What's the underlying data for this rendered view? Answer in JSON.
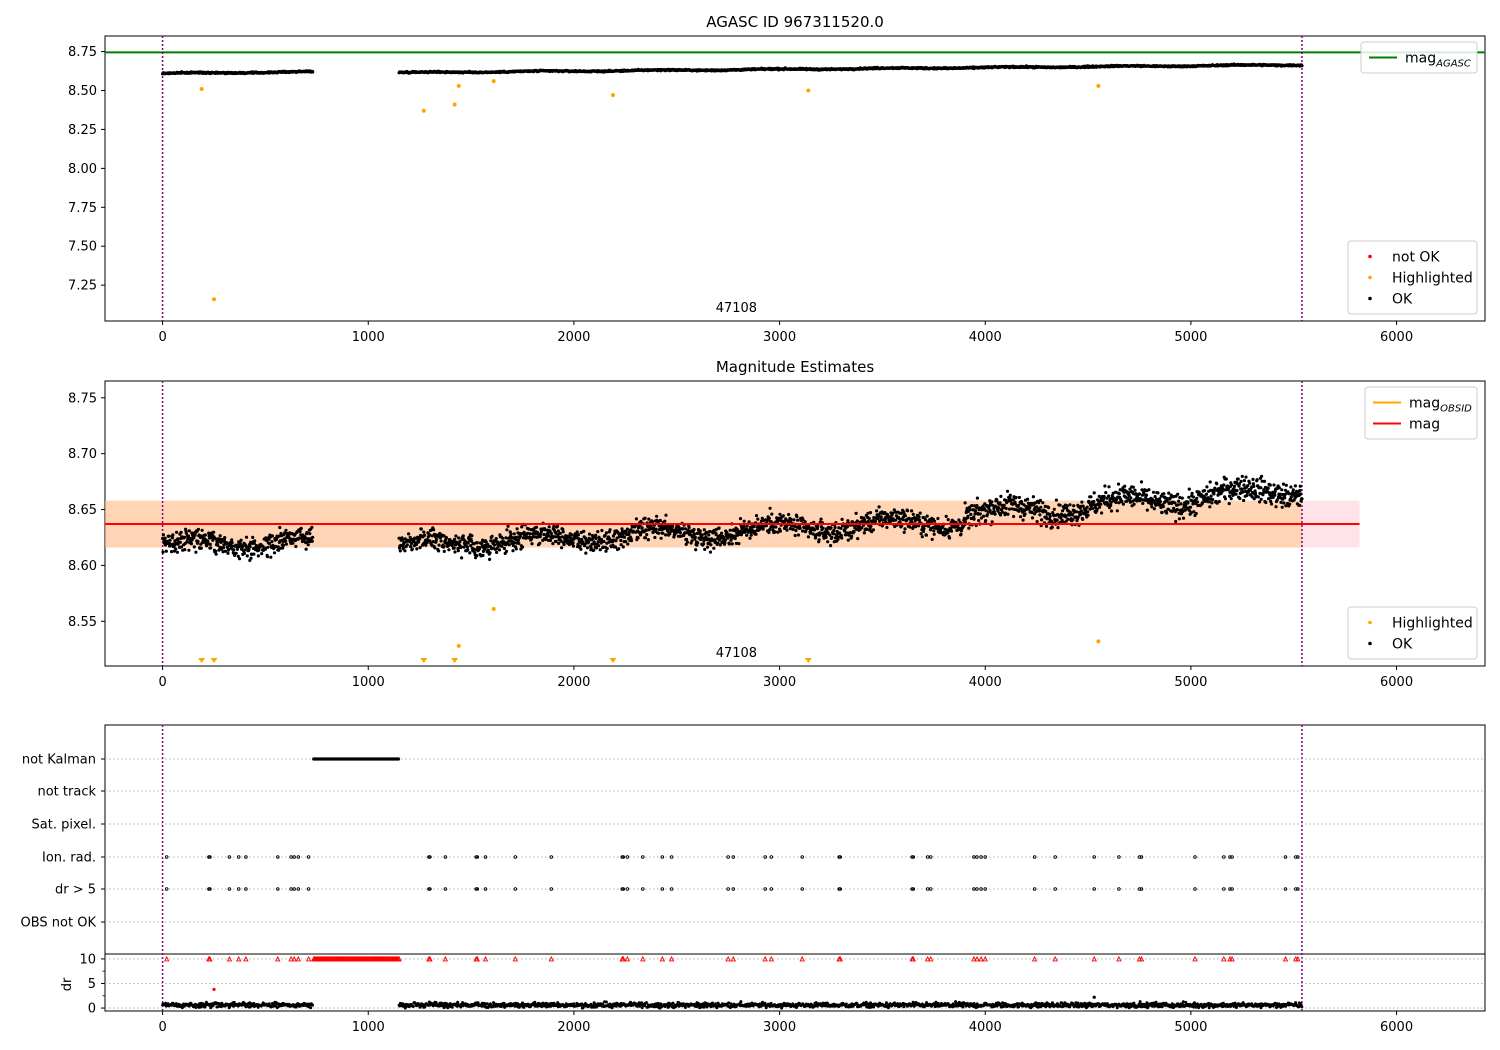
{
  "chart_data": [
    {
      "type": "scatter",
      "title": "AGASC ID 967311520.0",
      "xlabel": "",
      "ylabel": "",
      "xlim": [
        -280,
        6430
      ],
      "ylim": [
        7.02,
        8.85
      ],
      "xticks": [
        0,
        1000,
        2000,
        3000,
        4000,
        5000,
        6000
      ],
      "yticks": [
        7.25,
        7.5,
        7.75,
        8.0,
        8.25,
        8.5,
        8.75
      ],
      "ytick_labels": [
        "7.25",
        "7.50",
        "7.75",
        "8.00",
        "8.25",
        "8.50",
        "8.75"
      ],
      "annotation": "47108",
      "obs_boundaries": [
        0,
        5540
      ],
      "reference_lines": [
        {
          "name": "mag",
          "sub": "AGASC",
          "y": 8.745,
          "color": "#008000"
        }
      ],
      "legend_lines": [
        {
          "label": "mag",
          "sub": "AGASC",
          "color": "#008000"
        }
      ],
      "legend_points": [
        {
          "label": "not OK",
          "color": "#ff0000"
        },
        {
          "label": "Highlighted",
          "color": "#ffa500"
        },
        {
          "label": "OK",
          "color": "#000000"
        }
      ],
      "series": [
        {
          "name": "OK",
          "color": "#000000",
          "segments": [
            [
              0,
              730,
              8.61,
              8.62,
              0.006
            ],
            [
              1150,
              5540,
              8.615,
              8.665,
              0.006
            ]
          ]
        },
        {
          "name": "Highlighted",
          "color": "#ffa500",
          "points": [
            [
              190,
              8.51
            ],
            [
              250,
              7.16
            ],
            [
              1270,
              8.37
            ],
            [
              1420,
              8.41
            ],
            [
              1440,
              8.53
            ],
            [
              1610,
              8.56
            ],
            [
              2190,
              8.47
            ],
            [
              3140,
              8.5
            ],
            [
              4550,
              8.53
            ]
          ]
        }
      ]
    },
    {
      "type": "scatter",
      "title": "Magnitude Estimates",
      "xlabel": "",
      "ylabel": "",
      "xlim": [
        -280,
        6430
      ],
      "ylim": [
        8.51,
        8.765
      ],
      "xticks": [
        0,
        1000,
        2000,
        3000,
        4000,
        5000,
        6000
      ],
      "yticks": [
        8.55,
        8.6,
        8.65,
        8.7,
        8.75
      ],
      "ytick_labels": [
        "8.55",
        "8.60",
        "8.65",
        "8.70",
        "8.75"
      ],
      "annotation": "47108",
      "obs_boundaries": [
        0,
        5540
      ],
      "mag": 8.637,
      "mag_band": [
        8.616,
        8.658
      ],
      "band_x": [
        -280,
        5820
      ],
      "legend_lines": [
        {
          "label": "mag",
          "sub": "OBSID",
          "color": "#ffa500"
        },
        {
          "label": "mag",
          "sub": "",
          "color": "#ff0000"
        }
      ],
      "legend_points": [
        {
          "label": "Highlighted",
          "color": "#ffa500"
        },
        {
          "label": "OK",
          "color": "#000000"
        }
      ],
      "series": [
        {
          "name": "OK",
          "color": "#000000",
          "segments": [
            [
              0,
              730,
              8.618,
              8.622,
              0.012
            ],
            [
              1150,
              3900,
              8.618,
              8.64,
              0.012
            ],
            [
              3900,
              5540,
              8.645,
              8.668,
              0.014
            ]
          ]
        },
        {
          "name": "Highlighted",
          "color": "#ffa500",
          "points": [
            [
              1440,
              8.528
            ],
            [
              1610,
              8.561
            ],
            [
              4550,
              8.532
            ]
          ],
          "offscale_x": [
            190,
            250,
            1270,
            1420,
            2190,
            3140
          ]
        }
      ]
    },
    {
      "type": "scatter",
      "title": "",
      "xlabel": "",
      "ylabel": "",
      "xlim": [
        -280,
        6430
      ],
      "xticks": [
        0,
        1000,
        2000,
        3000,
        4000,
        5000,
        6000
      ],
      "obs_boundaries": [
        0,
        5540
      ],
      "flag_categories": [
        "not Kalman",
        "not track",
        "Sat. pixel.",
        "Ion. rad.",
        "dr > 5",
        "OBS not OK"
      ],
      "flags": {
        "not Kalman": {
          "range": [
            735,
            1150
          ]
        },
        "not track": {
          "x": []
        },
        "Sat. pixel.": {
          "x": []
        },
        "Ion. rad.": {
          "x": [
            20,
            225,
            230,
            325,
            370,
            405,
            560,
            625,
            640,
            660,
            710,
            1295,
            1300,
            1375,
            1525,
            1530,
            1570,
            1715,
            1890,
            2235,
            2240,
            2260,
            2335,
            2430,
            2475,
            2750,
            2775,
            2930,
            2960,
            3110,
            3290,
            3295,
            3645,
            3650,
            3720,
            3735,
            3945,
            3960,
            3980,
            4000,
            4240,
            4340,
            4530,
            4650,
            4750,
            4760,
            5020,
            5160,
            5190,
            5200,
            5460,
            5510,
            5520
          ]
        },
        "dr > 5": {
          "x": [
            20,
            225,
            230,
            325,
            370,
            405,
            560,
            625,
            640,
            660,
            710,
            1295,
            1300,
            1375,
            1525,
            1530,
            1570,
            1715,
            1890,
            2235,
            2240,
            2260,
            2335,
            2430,
            2475,
            2750,
            2775,
            2930,
            2960,
            3110,
            3290,
            3295,
            3645,
            3650,
            3720,
            3735,
            3945,
            3960,
            3980,
            4000,
            4240,
            4340,
            4530,
            4650,
            4750,
            4760,
            5020,
            5160,
            5190,
            5200,
            5460,
            5510,
            5520
          ]
        },
        "OBS not OK": {
          "x": []
        }
      },
      "dr": {
        "ylabel": "dr",
        "ylim": [
          -0.6,
          11
        ],
        "yticks": [
          0,
          5,
          10
        ],
        "segments": [
          [
            0,
            730,
            0.6
          ],
          [
            1150,
            5540,
            0.6
          ]
        ],
        "outliers": [
          [
            250,
            3.8
          ],
          [
            4530,
            2.2
          ]
        ],
        "clipped_value": 10,
        "clipped_range": [
          735,
          1150
        ],
        "clipped_x": [
          20,
          225,
          230,
          325,
          370,
          405,
          560,
          625,
          640,
          660,
          710,
          1295,
          1300,
          1375,
          1525,
          1530,
          1570,
          1715,
          1890,
          2235,
          2240,
          2260,
          2335,
          2430,
          2475,
          2750,
          2775,
          2930,
          2960,
          3110,
          3290,
          3295,
          3645,
          3650,
          3720,
          3735,
          3945,
          3960,
          3980,
          4000,
          4240,
          4340,
          4530,
          4650,
          4750,
          4760,
          5020,
          5160,
          5190,
          5200,
          5460,
          5510,
          5520
        ]
      }
    }
  ]
}
